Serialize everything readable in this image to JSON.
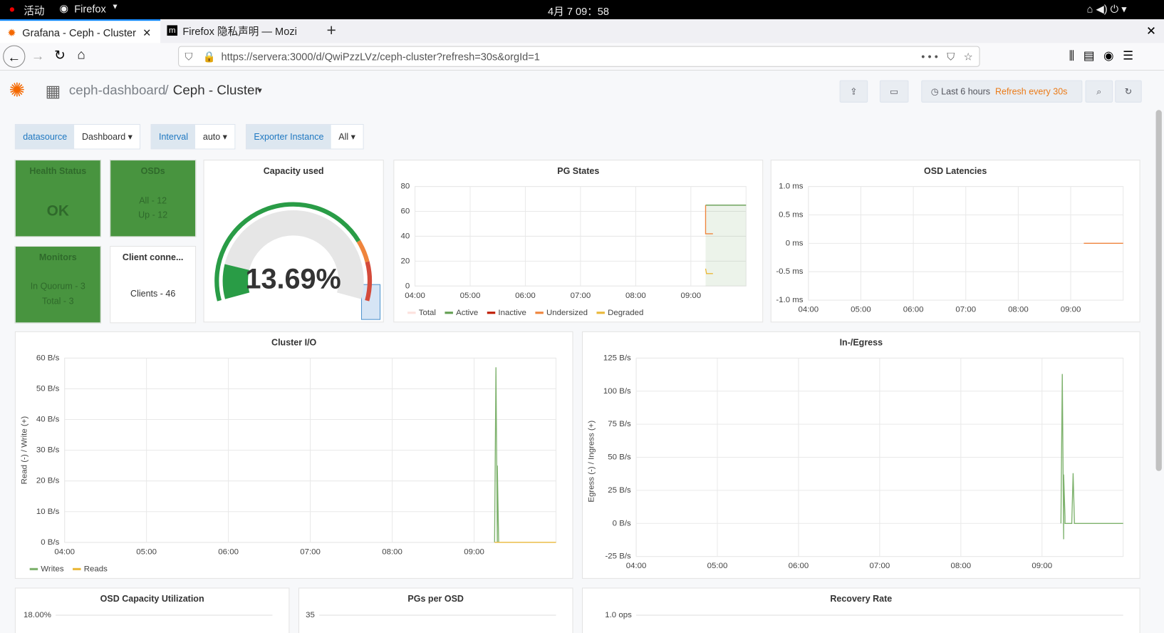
{
  "topbar": {
    "activities": "活动",
    "app": "Firefox",
    "clock": "4月 7 09：58"
  },
  "tabs": [
    {
      "title": "Grafana - Ceph - Cluster"
    },
    {
      "title": "Firefox 隐私声明 — Mozi"
    }
  ],
  "url": "https://servera:3000/d/QwiPzzLVz/ceph-cluster?refresh=30s&orgId=1",
  "dashboard": {
    "breadcrumb": "ceph-dashboard",
    "separator": "/",
    "title": "Ceph - Cluster",
    "time_range": "Last 6 hours",
    "refresh": "Refresh every 30s"
  },
  "variables": [
    {
      "label": "datasource",
      "value": "Dashboard"
    },
    {
      "label": "Interval",
      "value": "auto"
    },
    {
      "label": "Exporter Instance",
      "value": "All"
    }
  ],
  "stats": [
    {
      "title": "Health Status",
      "value": "OK"
    },
    {
      "title": "OSDs",
      "lines": [
        "All - 12",
        "Up - 12"
      ]
    },
    {
      "title": "Monitors",
      "lines": [
        "In Quorum - 3",
        "Total - 3"
      ]
    },
    {
      "title": "Client conne...",
      "lines": [
        "Clients - 46"
      ]
    }
  ],
  "gauge": {
    "title": "Capacity used",
    "value": 13.69,
    "value_label": "13.69%",
    "min": 0,
    "max": 100,
    "color": "#299c46",
    "thresholds": [
      {
        "value": 0,
        "color": "#299c46"
      },
      {
        "value": 78,
        "color": "#ef843c"
      },
      {
        "value": 86,
        "color": "#d44a3a"
      }
    ]
  },
  "charts": {
    "pg_states": {
      "type": "line",
      "title": "PG States",
      "xlim": [
        "04:00",
        "10:00"
      ],
      "xticks": [
        "04:00",
        "05:00",
        "06:00",
        "07:00",
        "08:00",
        "09:00"
      ],
      "ylim": [
        0,
        80
      ],
      "yticks": [
        0,
        20,
        40,
        60,
        80
      ],
      "grid": true,
      "series": [
        {
          "name": "Total",
          "color": "#fce2de",
          "x": [
            "09:16",
            "10:00"
          ],
          "values": [
            65,
            65
          ]
        },
        {
          "name": "Active",
          "color": "#629e51",
          "fill": true,
          "x": [
            "09:16",
            "10:00"
          ],
          "values": [
            65,
            65
          ]
        },
        {
          "name": "Inactive",
          "color": "#bf1b00",
          "x": [],
          "values": []
        },
        {
          "name": "Undersized",
          "color": "#ef843c",
          "x": [
            "09:16",
            "09:16",
            "09:24"
          ],
          "values": [
            65,
            42,
            42
          ]
        },
        {
          "name": "Degraded",
          "color": "#eab839",
          "x": [
            "09:16",
            "09:17",
            "09:24"
          ],
          "values": [
            14,
            10,
            10
          ]
        }
      ]
    },
    "osd_latencies": {
      "type": "line",
      "title": "OSD Latencies",
      "xlim": [
        "04:00",
        "10:00"
      ],
      "xticks": [
        "04:00",
        "05:00",
        "06:00",
        "07:00",
        "08:00",
        "09:00"
      ],
      "ylim": [
        -1,
        1
      ],
      "yticks": [
        {
          "value": 1,
          "label": "1.0 ms"
        },
        {
          "value": 0.5,
          "label": "0.5 ms"
        },
        {
          "value": 0,
          "label": "0 ms"
        },
        {
          "value": -0.5,
          "label": "-0.5 ms"
        },
        {
          "value": -1,
          "label": "-1.0 ms"
        }
      ],
      "grid": true,
      "series": [
        {
          "color": "#ef843c",
          "x": [
            "09:15",
            "10:00"
          ],
          "values": [
            0,
            0
          ]
        }
      ]
    },
    "cluster_io": {
      "type": "line",
      "title": "Cluster I/O",
      "ylabel": "Read (-) / Write (+)",
      "xlim": [
        "04:00",
        "10:00"
      ],
      "xticks": [
        "04:00",
        "05:00",
        "06:00",
        "07:00",
        "08:00",
        "09:00"
      ],
      "ylim": [
        0,
        60
      ],
      "yticks": [
        {
          "value": 0,
          "label": "0 B/s"
        },
        {
          "value": 10,
          "label": "10 B/s"
        },
        {
          "value": 20,
          "label": "20 B/s"
        },
        {
          "value": 30,
          "label": "30 B/s"
        },
        {
          "value": 40,
          "label": "40 B/s"
        },
        {
          "value": 50,
          "label": "50 B/s"
        },
        {
          "value": 60,
          "label": "60 B/s"
        }
      ],
      "grid": true,
      "series": [
        {
          "name": "Writes",
          "color": "#7eb26d",
          "x": [
            "09:15",
            "09:16",
            "09:17",
            "09:17",
            "09:18"
          ],
          "values": [
            0,
            57,
            0,
            25,
            0
          ]
        },
        {
          "name": "Reads",
          "color": "#eab839",
          "x": [
            "09:15",
            "10:00"
          ],
          "values": [
            0,
            0
          ]
        }
      ]
    },
    "ingress": {
      "type": "line",
      "title": "In-/Egress",
      "ylabel": "Egress (-) / Ingress (+)",
      "xlim": [
        "04:00",
        "10:00"
      ],
      "xticks": [
        "04:00",
        "05:00",
        "06:00",
        "07:00",
        "08:00",
        "09:00"
      ],
      "ylim": [
        -25,
        125
      ],
      "yticks": [
        {
          "value": -25,
          "label": "-25 B/s"
        },
        {
          "value": 0,
          "label": "0 B/s"
        },
        {
          "value": 25,
          "label": "25 B/s"
        },
        {
          "value": 50,
          "label": "50 B/s"
        },
        {
          "value": 75,
          "label": "75 B/s"
        },
        {
          "value": 100,
          "label": "100 B/s"
        },
        {
          "value": 125,
          "label": "125 B/s"
        }
      ],
      "grid": true,
      "series": [
        {
          "color": "#7eb26d",
          "x": [
            "09:14",
            "09:15",
            "09:16",
            "09:16",
            "09:17",
            "09:17",
            "09:22",
            "09:23",
            "09:24",
            "10:00"
          ],
          "values": [
            0,
            113,
            -12,
            37,
            5,
            0,
            0,
            38,
            0,
            0
          ]
        }
      ]
    },
    "osd_capacity": {
      "type": "partial",
      "title": "OSD Capacity Utilization",
      "yticks": [
        {
          "value": 18,
          "label": "18.00%"
        }
      ]
    },
    "pgs_per_osd": {
      "type": "partial",
      "title": "PGs per OSD",
      "yticks": [
        35
      ]
    },
    "recovery_rate": {
      "type": "partial",
      "title": "Recovery Rate",
      "yticks": [
        {
          "value": 1,
          "label": "1.0 ops"
        }
      ]
    }
  }
}
